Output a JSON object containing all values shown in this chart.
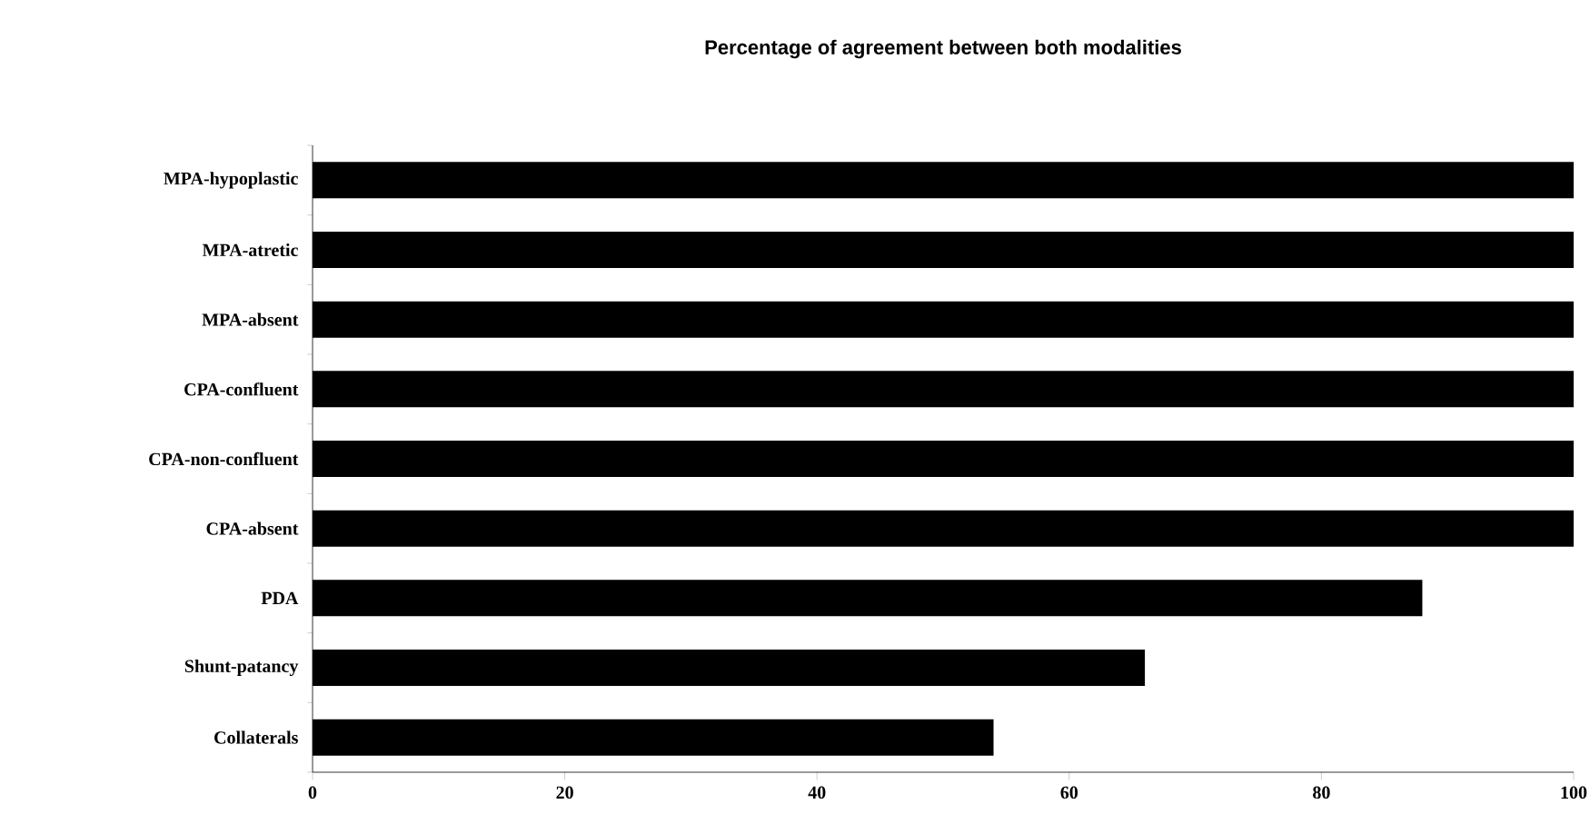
{
  "chart_data": {
    "type": "bar",
    "orientation": "horizontal",
    "title": "Percentage of agreement between both modalities",
    "categories": [
      "MPA-hypoplastic",
      "MPA-atretic",
      "MPA-absent",
      "CPA-confluent",
      "CPA-non-confluent",
      "CPA-absent",
      "PDA",
      "Shunt-patancy",
      "Collaterals"
    ],
    "values": [
      100,
      100,
      100,
      100,
      100,
      100,
      88,
      66,
      54
    ],
    "color": "#000000",
    "xlim": [
      0,
      100
    ],
    "xticks": [
      0,
      20,
      40,
      60,
      80,
      100
    ],
    "grid": false
  }
}
